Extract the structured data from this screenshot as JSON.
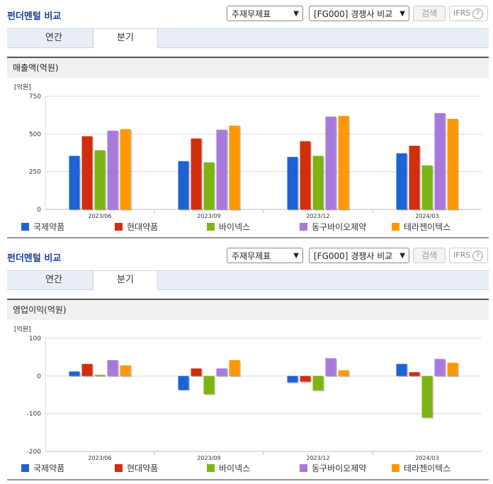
{
  "panels": [
    {
      "title": "펀더멘털 비교",
      "select1": "주재무제표",
      "select2": "[FG000] 경쟁사 비교",
      "search_label": "검색",
      "ifrs_label": "IFRS",
      "tabs": [
        "연간",
        "분기"
      ],
      "active_tab": 1,
      "section_title": "매출액(억원)"
    },
    {
      "title": "펀더멘털 비교",
      "select1": "주재무제표",
      "select2": "[FG000] 경쟁사 비교",
      "search_label": "검색",
      "ifrs_label": "IFRS",
      "tabs": [
        "연간",
        "분기"
      ],
      "active_tab": 1,
      "section_title": "영업이익(억원)"
    }
  ],
  "chart_data": [
    {
      "type": "bar",
      "unit_label": "[억원]",
      "categories": [
        "2023/06",
        "2023/09",
        "2023/12",
        "2024/03"
      ],
      "ylim": [
        0,
        750
      ],
      "yticks": [
        0,
        250,
        500,
        750
      ],
      "series": [
        {
          "name": "국제약품",
          "color": "#1e63d6",
          "values": [
            355,
            320,
            348,
            372
          ]
        },
        {
          "name": "현대약품",
          "color": "#d22e0e",
          "values": [
            485,
            470,
            452,
            422
          ]
        },
        {
          "name": "바이넥스",
          "color": "#7cb511",
          "values": [
            392,
            312,
            355,
            292
          ]
        },
        {
          "name": "동구바이오제약",
          "color": "#a879dd",
          "values": [
            522,
            528,
            615,
            638
          ]
        },
        {
          "name": "테라젠이텍스",
          "color": "#ff9800",
          "values": [
            532,
            555,
            620,
            600
          ]
        }
      ]
    },
    {
      "type": "bar",
      "unit_label": "[억원]",
      "categories": [
        "2023/06",
        "2023/09",
        "2023/12",
        "2024/03"
      ],
      "ylim": [
        -200,
        100
      ],
      "yticks": [
        -200,
        -100,
        0,
        100
      ],
      "series": [
        {
          "name": "국제약품",
          "color": "#1e63d6",
          "values": [
            12,
            -37,
            -17,
            32
          ]
        },
        {
          "name": "현대약품",
          "color": "#d22e0e",
          "values": [
            32,
            20,
            -15,
            10
          ]
        },
        {
          "name": "바이넥스",
          "color": "#7cb511",
          "values": [
            3,
            -48,
            -38,
            -110
          ]
        },
        {
          "name": "동구바이오제약",
          "color": "#a879dd",
          "values": [
            42,
            20,
            47,
            45
          ]
        },
        {
          "name": "테라젠이텍스",
          "color": "#ff9800",
          "values": [
            28,
            42,
            15,
            35
          ]
        }
      ]
    }
  ]
}
